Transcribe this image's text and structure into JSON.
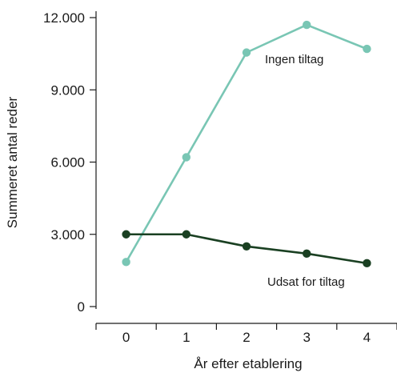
{
  "chart_data": {
    "type": "line",
    "title": "",
    "xlabel": "År efter etablering",
    "ylabel": "Summeret antal reder",
    "categories": [
      "0",
      "1",
      "2",
      "3",
      "4"
    ],
    "x": [
      0,
      1,
      2,
      3,
      4
    ],
    "xlim": [
      -0.5,
      4.5
    ],
    "ylim": [
      0,
      12000
    ],
    "yticks": [
      0,
      3000,
      6000,
      9000,
      12000
    ],
    "ytick_labels": [
      "0",
      "3.000",
      "6.000",
      "9.000",
      "12.000"
    ],
    "grid": false,
    "legend": "none",
    "series": [
      {
        "name": "Ingen tiltag",
        "color": "#79c6b4",
        "values": [
          1850,
          6200,
          10550,
          11700,
          10700
        ]
      },
      {
        "name": "Udsat for tiltag",
        "color": "#1a4022",
        "values": [
          3000,
          3000,
          2500,
          2200,
          1800
        ]
      }
    ]
  }
}
